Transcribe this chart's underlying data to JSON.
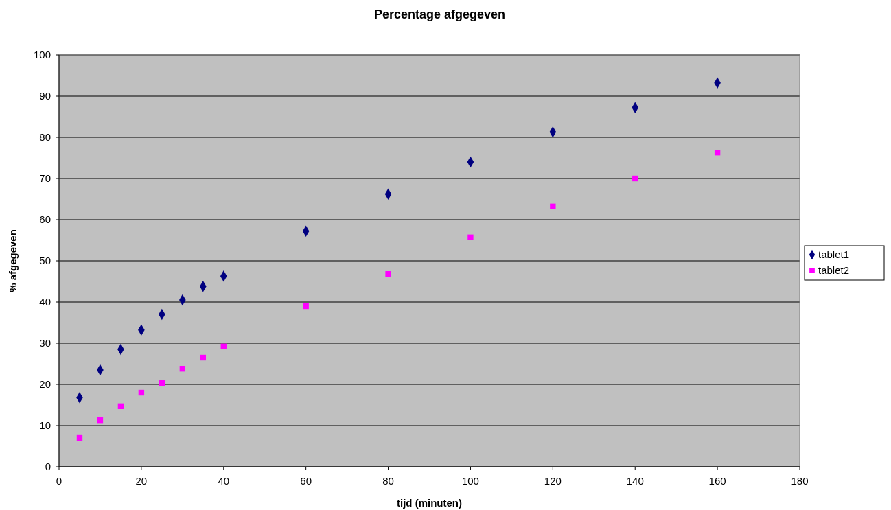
{
  "chart_data": {
    "type": "scatter",
    "title": "Percentage afgegeven",
    "xlabel": "tijd (minuten)",
    "ylabel": "% afgegeven",
    "x": [
      5,
      10,
      15,
      20,
      25,
      30,
      35,
      40,
      60,
      80,
      100,
      120,
      140,
      160
    ],
    "series": [
      {
        "name": "tablet1",
        "color": "#000080",
        "marker": "diamond",
        "values": [
          16.8,
          23.5,
          28.5,
          33.2,
          37.0,
          40.5,
          43.8,
          46.3,
          57.2,
          66.2,
          74.0,
          81.3,
          87.2,
          93.2
        ]
      },
      {
        "name": "tablet2",
        "color": "#ff00ff",
        "marker": "square",
        "values": [
          7.0,
          11.3,
          14.7,
          18.0,
          20.3,
          23.8,
          26.5,
          29.2,
          39.0,
          46.8,
          55.7,
          63.2,
          70.0,
          76.3
        ]
      }
    ],
    "xlim": [
      0,
      180
    ],
    "xticks": [
      0,
      20,
      40,
      60,
      80,
      100,
      120,
      140,
      160,
      180
    ],
    "ylim": [
      0,
      100
    ],
    "yticks": [
      0,
      10,
      20,
      30,
      40,
      50,
      60,
      70,
      80,
      90,
      100
    ],
    "grid": "y",
    "legend": "right"
  }
}
